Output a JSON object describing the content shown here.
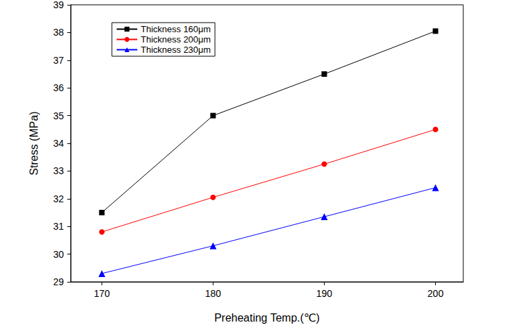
{
  "chart_data": {
    "type": "line",
    "x_label": "Preheating Temp.(℃)",
    "y_label": "Stress (MPa)",
    "x": [
      170,
      180,
      190,
      200
    ],
    "series": [
      {
        "name": "Thickness 160μm",
        "color": "#000000",
        "marker": "square",
        "line_style": "solid",
        "values": [
          31.5,
          35.0,
          36.5,
          38.05
        ]
      },
      {
        "name": "Thickness 200μm",
        "color": "#ff0000",
        "marker": "circle",
        "line_style": "solid",
        "values": [
          30.8,
          32.05,
          33.25,
          34.5
        ]
      },
      {
        "name": "Thickness 230μm",
        "color": "#0000ff",
        "marker": "triangle",
        "line_style": "solid",
        "values": [
          29.3,
          30.3,
          31.35,
          32.4
        ]
      }
    ],
    "xlim": [
      167.2,
      202.5
    ],
    "xticks": [
      170,
      180,
      190,
      200
    ],
    "ylim": [
      29,
      39
    ],
    "yticks": [
      29,
      30,
      31,
      32,
      33,
      34,
      35,
      36,
      37,
      38,
      39
    ],
    "grid": false,
    "legend": "upper left"
  }
}
